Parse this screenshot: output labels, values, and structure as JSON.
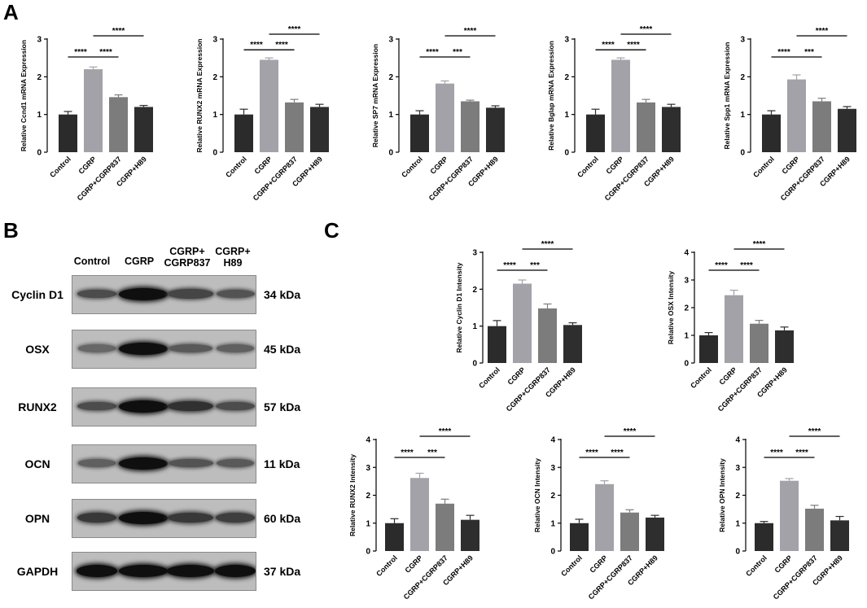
{
  "panel_letters": {
    "a": "A",
    "b": "B",
    "c": "C"
  },
  "blot": {
    "columns": [
      "Control",
      "CGRP",
      "CGRP+\nCGRP837",
      "CGRP+\nH89"
    ],
    "rows": [
      {
        "protein": "Cyclin D1",
        "kda": "34 kDa",
        "intensity": [
          0.55,
          1.0,
          0.6,
          0.5
        ]
      },
      {
        "protein": "OSX",
        "kda": "45 kDa",
        "intensity": [
          0.35,
          1.0,
          0.45,
          0.4
        ]
      },
      {
        "protein": "RUNX2",
        "kda": "57 kDa",
        "intensity": [
          0.55,
          1.0,
          0.75,
          0.55
        ]
      },
      {
        "protein": "OCN",
        "kda": "11 kDa",
        "intensity": [
          0.4,
          1.0,
          0.5,
          0.45
        ]
      },
      {
        "protein": "OPN",
        "kda": "60 kDa",
        "intensity": [
          0.7,
          1.0,
          0.7,
          0.65
        ]
      },
      {
        "protein": "GAPDH",
        "kda": "37 kDa",
        "intensity": [
          1.0,
          1.0,
          1.0,
          1.0
        ]
      }
    ]
  },
  "colors": {
    "control": "#2b2b2b",
    "cgrp": "#a2a2a8",
    "cgrp837": "#7c7c7c",
    "h89": "#2e2e2e"
  },
  "chart_data": [
    {
      "type": "bar",
      "ylabel": "Relative Ccnd1 mRNA Expression",
      "ylim": [
        0,
        3
      ],
      "ticks": [
        0,
        1,
        2,
        3
      ],
      "categories": [
        "Control",
        "CGRP",
        "CGRP+CGRP837",
        "CGRP+H89"
      ],
      "values": [
        1.0,
        2.2,
        1.46,
        1.2
      ],
      "errors": [
        0.08,
        0.06,
        0.06,
        0.04
      ],
      "annotations": [
        {
          "from": 0,
          "to": 1,
          "label": "****"
        },
        {
          "from": 1,
          "to": 2,
          "label": "****"
        },
        {
          "from": 1,
          "to": 3,
          "label": "****"
        }
      ]
    },
    {
      "type": "bar",
      "ylabel": "Relative RUNX2 mRNA Expression",
      "ylim": [
        0,
        3
      ],
      "ticks": [
        0,
        1,
        2,
        3
      ],
      "categories": [
        "Control",
        "CGRP",
        "CGRP+CGRP837",
        "CGRP+H89"
      ],
      "values": [
        1.0,
        2.45,
        1.32,
        1.2
      ],
      "errors": [
        0.14,
        0.05,
        0.08,
        0.07
      ],
      "annotations": [
        {
          "from": 0,
          "to": 1,
          "label": "****"
        },
        {
          "from": 1,
          "to": 2,
          "label": "****"
        },
        {
          "from": 1,
          "to": 3,
          "label": "****"
        }
      ]
    },
    {
      "type": "bar",
      "ylabel": "Relative SP7 mRNA Expression",
      "ylim": [
        0,
        3
      ],
      "ticks": [
        0,
        1,
        2,
        3
      ],
      "categories": [
        "Control",
        "CGRP",
        "CGRP+CGRP837",
        "CGRP+H89"
      ],
      "values": [
        1.0,
        1.82,
        1.35,
        1.18
      ],
      "errors": [
        0.1,
        0.07,
        0.03,
        0.05
      ],
      "annotations": [
        {
          "from": 0,
          "to": 1,
          "label": "****"
        },
        {
          "from": 1,
          "to": 2,
          "label": "***"
        },
        {
          "from": 1,
          "to": 3,
          "label": "****"
        }
      ]
    },
    {
      "type": "bar",
      "ylabel": "Relative Bglap mRNA Expression",
      "ylim": [
        0,
        3
      ],
      "ticks": [
        0,
        1,
        2,
        3
      ],
      "categories": [
        "Control",
        "CGRP",
        "CGRP+CGRP837",
        "CGRP+H89"
      ],
      "values": [
        1.0,
        2.45,
        1.32,
        1.2
      ],
      "errors": [
        0.14,
        0.05,
        0.08,
        0.07
      ],
      "annotations": [
        {
          "from": 0,
          "to": 1,
          "label": "****"
        },
        {
          "from": 1,
          "to": 2,
          "label": "****"
        },
        {
          "from": 1,
          "to": 3,
          "label": "****"
        }
      ]
    },
    {
      "type": "bar",
      "ylabel": "Relative Spp1 mRNA Expression",
      "ylim": [
        0,
        3
      ],
      "ticks": [
        0,
        1,
        2,
        3
      ],
      "categories": [
        "Control",
        "CGRP",
        "CGRP+CGRP837",
        "CGRP+H89"
      ],
      "values": [
        1.0,
        1.93,
        1.35,
        1.15
      ],
      "errors": [
        0.1,
        0.12,
        0.08,
        0.06
      ],
      "annotations": [
        {
          "from": 0,
          "to": 1,
          "label": "****"
        },
        {
          "from": 1,
          "to": 2,
          "label": "***"
        },
        {
          "from": 1,
          "to": 3,
          "label": "****"
        }
      ]
    },
    {
      "type": "bar",
      "ylabel": "Relative Cyclin D1 Intensity",
      "ylim": [
        0,
        3
      ],
      "ticks": [
        0,
        1,
        2,
        3
      ],
      "categories": [
        "Control",
        "CGRP",
        "CGRP+CGRP837",
        "CGRP+H89"
      ],
      "values": [
        1.0,
        2.15,
        1.48,
        1.03
      ],
      "errors": [
        0.15,
        0.1,
        0.12,
        0.06
      ],
      "annotations": [
        {
          "from": 0,
          "to": 1,
          "label": "****"
        },
        {
          "from": 1,
          "to": 2,
          "label": "***"
        },
        {
          "from": 1,
          "to": 3,
          "label": "****"
        }
      ]
    },
    {
      "type": "bar",
      "ylabel": "Relative OSX Intensity",
      "ylim": [
        0,
        4
      ],
      "ticks": [
        0,
        1,
        2,
        3,
        4
      ],
      "categories": [
        "Control",
        "CGRP",
        "CGRP+CGRP837",
        "CGRP+H89"
      ],
      "values": [
        1.0,
        2.45,
        1.42,
        1.18
      ],
      "errors": [
        0.1,
        0.18,
        0.12,
        0.12
      ],
      "annotations": [
        {
          "from": 0,
          "to": 1,
          "label": "****"
        },
        {
          "from": 1,
          "to": 2,
          "label": "****"
        },
        {
          "from": 1,
          "to": 3,
          "label": "****"
        }
      ]
    },
    {
      "type": "bar",
      "ylabel": "Relative RUNX2 Intensity",
      "ylim": [
        0,
        4
      ],
      "ticks": [
        0,
        1,
        2,
        3,
        4
      ],
      "categories": [
        "Control",
        "CGRP",
        "CGRP+CGRP837",
        "CGRP+H89"
      ],
      "values": [
        1.0,
        2.62,
        1.7,
        1.12
      ],
      "errors": [
        0.16,
        0.17,
        0.16,
        0.16
      ],
      "annotations": [
        {
          "from": 0,
          "to": 1,
          "label": "****"
        },
        {
          "from": 1,
          "to": 2,
          "label": "***"
        },
        {
          "from": 1,
          "to": 3,
          "label": "****"
        }
      ]
    },
    {
      "type": "bar",
      "ylabel": "Relative OCN Intensity",
      "ylim": [
        0,
        4
      ],
      "ticks": [
        0,
        1,
        2,
        3,
        4
      ],
      "categories": [
        "Control",
        "CGRP",
        "CGRP+CGRP837",
        "CGRP+H89"
      ],
      "values": [
        1.0,
        2.4,
        1.38,
        1.2
      ],
      "errors": [
        0.14,
        0.12,
        0.1,
        0.08
      ],
      "annotations": [
        {
          "from": 0,
          "to": 1,
          "label": "****"
        },
        {
          "from": 1,
          "to": 2,
          "label": "****"
        },
        {
          "from": 1,
          "to": 3,
          "label": "****"
        }
      ]
    },
    {
      "type": "bar",
      "ylabel": "Relative OPN Intensity",
      "ylim": [
        0,
        4
      ],
      "ticks": [
        0,
        1,
        2,
        3,
        4
      ],
      "categories": [
        "Control",
        "CGRP",
        "CGRP+CGRP837",
        "CGRP+H89"
      ],
      "values": [
        1.0,
        2.52,
        1.52,
        1.1
      ],
      "errors": [
        0.06,
        0.08,
        0.12,
        0.14
      ],
      "annotations": [
        {
          "from": 0,
          "to": 1,
          "label": "****"
        },
        {
          "from": 1,
          "to": 2,
          "label": "****"
        },
        {
          "from": 1,
          "to": 3,
          "label": "****"
        }
      ]
    }
  ]
}
